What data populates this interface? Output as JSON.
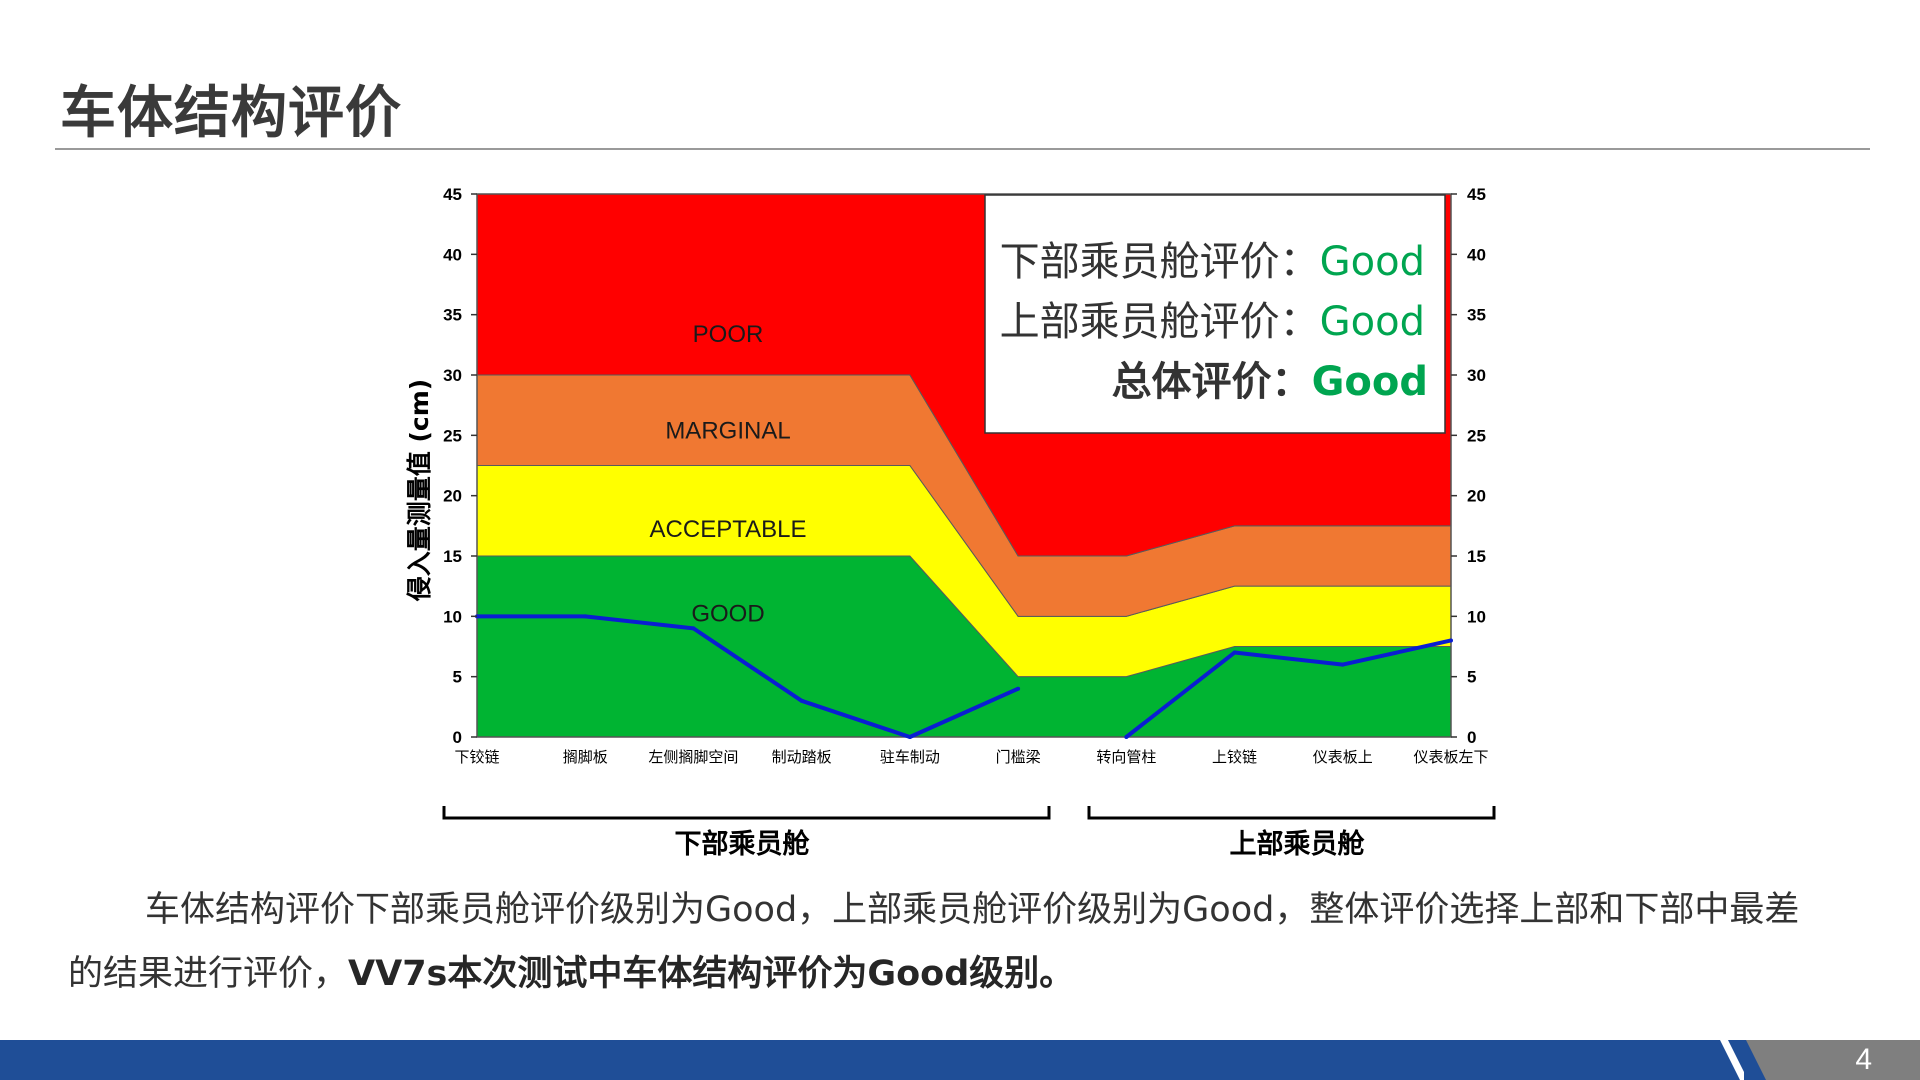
{
  "slide": {
    "title": "车体结构评价",
    "page_number": "4"
  },
  "summary": {
    "lower_label": "下部乘员舱评价：",
    "lower_value": "Good",
    "upper_label": "上部乘员舱评价：",
    "upper_value": "Good",
    "overall_label": "总体评价：",
    "overall_value": "Good"
  },
  "sections": {
    "lower": "下部乘员舱",
    "upper": "上部乘员舱"
  },
  "body": {
    "line1": "车体结构评价下部乘员舱评价级别为Good，上部乘员舱评价级别为Good，整体评价选择上部和下部中最差",
    "line2_plain": "的结果进行评价，",
    "line2_bold": "VV7s本次测试中车体结构评价为Good级别。"
  },
  "colors": {
    "poor": "#ff0000",
    "marginal": "#f07832",
    "acceptable": "#ffff00",
    "good": "#00b432",
    "measure_line": "#0a1ed2",
    "good_text": "#00a550",
    "footer": "#1f4e97"
  },
  "chart_data": {
    "type": "area",
    "categories": [
      "下铰链",
      "搁脚板",
      "左侧搁脚空间",
      "制动踏板",
      "驻车制动",
      "门槛梁",
      "转向管柱",
      "上铰链",
      "仪表板上",
      "仪表板左下"
    ],
    "ylabel": "侵入量测量值 (cm)",
    "ylim": [
      0,
      45
    ],
    "yticks": [
      0,
      5,
      10,
      15,
      20,
      25,
      30,
      35,
      40,
      45
    ],
    "bands": [
      {
        "name": "GOOD",
        "upper": [
          15,
          15,
          15,
          15,
          15,
          5,
          5,
          7.5,
          7.5,
          7.5
        ]
      },
      {
        "name": "ACCEPTABLE",
        "upper": [
          22.5,
          22.5,
          22.5,
          22.5,
          22.5,
          10,
          10,
          12.5,
          12.5,
          12.5
        ]
      },
      {
        "name": "MARGINAL",
        "upper": [
          30,
          30,
          30,
          30,
          30,
          15,
          15,
          17.5,
          17.5,
          17.5
        ]
      },
      {
        "name": "POOR",
        "upper": [
          45,
          45,
          45,
          45,
          45,
          45,
          45,
          45,
          45,
          45
        ]
      }
    ],
    "series": [
      {
        "values": [
          10,
          10,
          9,
          3,
          0,
          4,
          null,
          null,
          null,
          null
        ]
      },
      {
        "values": [
          null,
          null,
          null,
          null,
          null,
          null,
          0,
          7,
          6,
          8
        ]
      }
    ]
  }
}
